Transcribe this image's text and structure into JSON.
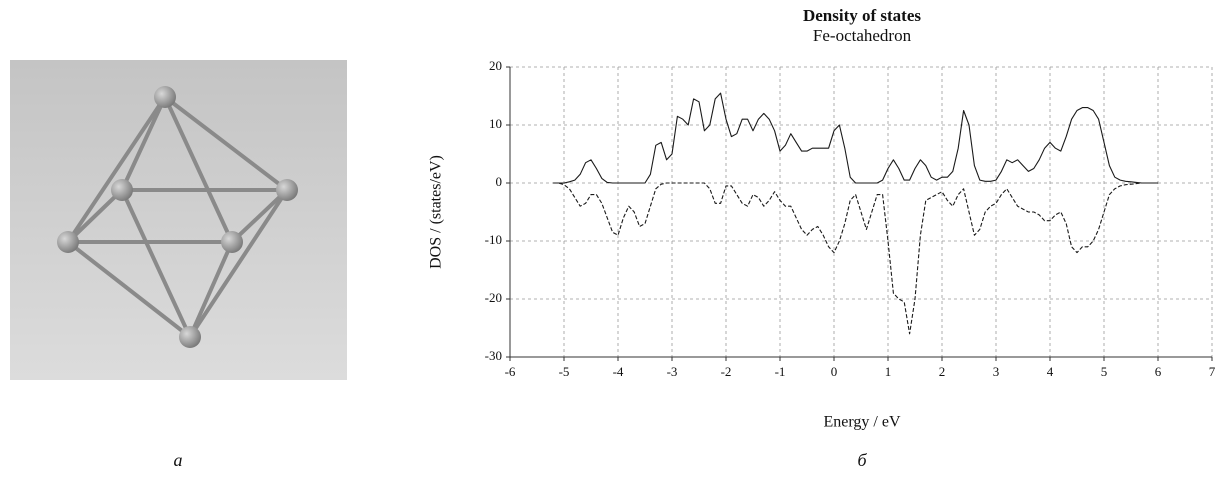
{
  "panel_labels": [
    "а",
    "б"
  ],
  "chart_data": {
    "type": "line",
    "title": "Density of states",
    "subtitle": "Fe-octahedron",
    "x_label": "Energy / eV",
    "y_label": "DOS / (states/eV)",
    "xlim": [
      -6,
      7
    ],
    "xticks": [
      -6,
      -5,
      -4,
      -3,
      -2,
      -1,
      0,
      1,
      2,
      3,
      4,
      5,
      6,
      7
    ],
    "ylim": [
      -30,
      20
    ],
    "yticks": [
      20,
      10,
      0,
      -10,
      -20,
      -30
    ],
    "grid": true,
    "x": [
      -5.2,
      -5.1,
      -5,
      -4.9,
      -4.8,
      -4.7,
      -4.6,
      -4.5,
      -4.4,
      -4.3,
      -4.2,
      -4.1,
      -4,
      -3.9,
      -3.8,
      -3.7,
      -3.6,
      -3.5,
      -3.4,
      -3.3,
      -3.2,
      -3.1,
      -3,
      -2.9,
      -2.8,
      -2.7,
      -2.6,
      -2.5,
      -2.4,
      -2.3,
      -2.2,
      -2.1,
      -2,
      -1.9,
      -1.8,
      -1.7,
      -1.6,
      -1.5,
      -1.4,
      -1.3,
      -1.2,
      -1.1,
      -1,
      -0.9,
      -0.8,
      -0.7,
      -0.6,
      -0.5,
      -0.4,
      -0.3,
      -0.2,
      -0.1,
      0,
      0.1,
      0.2,
      0.3,
      0.4,
      0.5,
      0.6,
      0.7,
      0.8,
      0.9,
      1,
      1.1,
      1.2,
      1.3,
      1.4,
      1.5,
      1.6,
      1.7,
      1.8,
      1.9,
      2,
      2.1,
      2.2,
      2.3,
      2.4,
      2.5,
      2.6,
      2.7,
      2.8,
      2.9,
      3,
      3.1,
      3.2,
      3.3,
      3.4,
      3.5,
      3.6,
      3.7,
      3.8,
      3.9,
      4,
      4.1,
      4.2,
      4.3,
      4.4,
      4.5,
      4.6,
      4.7,
      4.8,
      4.9,
      5,
      5.1,
      5.2,
      5.3,
      5.4,
      5.5,
      5.6,
      5.7,
      5.8,
      5.9,
      6
    ],
    "series": [
      {
        "color": "#1a1a1a",
        "dash": "solid",
        "values": [
          0,
          0,
          0,
          0.2,
          0.5,
          1.5,
          3.5,
          4,
          2.5,
          0.8,
          0.1,
          0,
          0,
          0,
          0,
          0,
          0,
          0,
          1.5,
          6.5,
          7,
          4,
          5,
          11.5,
          11,
          10,
          14.5,
          14,
          9,
          10,
          14.5,
          15.5,
          11,
          8,
          8.5,
          11,
          11,
          9,
          11,
          12,
          11,
          9,
          5.5,
          6.5,
          8.5,
          7,
          5.5,
          5.5,
          6,
          6,
          6,
          6,
          9,
          10,
          6,
          1,
          0,
          0,
          0,
          0,
          0,
          0.5,
          2.5,
          4,
          2.5,
          0.5,
          0.5,
          2.5,
          4,
          3,
          1,
          0.5,
          1,
          1,
          2,
          6,
          12.5,
          10,
          3,
          0.5,
          0.3,
          0.3,
          0.5,
          2,
          4,
          3.5,
          4,
          3,
          2,
          2.5,
          4,
          6,
          7,
          6,
          5.5,
          8,
          11,
          12.5,
          13,
          13,
          12.5,
          11,
          7,
          3,
          1,
          0.5,
          0.3,
          0.2,
          0.1,
          0,
          0,
          0,
          0
        ]
      },
      {
        "color": "#1a1a1a",
        "dash": "dashed",
        "values": [
          0,
          0,
          -0.3,
          -1,
          -2.5,
          -4,
          -3.5,
          -2,
          -2,
          -3.5,
          -6,
          -8.5,
          -9,
          -6,
          -4,
          -5,
          -7.5,
          -7,
          -4,
          -1,
          -0.2,
          0,
          0,
          0,
          0,
          0,
          0,
          0,
          0,
          -1,
          -3.5,
          -3.5,
          -0.5,
          -0.5,
          -2,
          -3.5,
          -4,
          -2,
          -2.5,
          -4,
          -3,
          -1.5,
          -3,
          -4,
          -4,
          -6,
          -8,
          -9,
          -8,
          -7.5,
          -9,
          -11,
          -12,
          -10,
          -7,
          -3,
          -2,
          -5,
          -8,
          -5,
          -2,
          -2,
          -10,
          -19,
          -20,
          -20.5,
          -26,
          -20,
          -9,
          -3,
          -2.5,
          -2,
          -1.5,
          -3,
          -4,
          -2,
          -1,
          -5,
          -9,
          -8,
          -5,
          -4,
          -3.5,
          -2,
          -1,
          -2.5,
          -4,
          -4.5,
          -5,
          -5,
          -5.5,
          -6.5,
          -6.5,
          -5.5,
          -5,
          -7,
          -11,
          -12,
          -11,
          -11,
          -10,
          -8,
          -5,
          -2,
          -1,
          -0.5,
          -0.3,
          -0.2,
          -0.1,
          0,
          0,
          0,
          0
        ]
      }
    ]
  }
}
